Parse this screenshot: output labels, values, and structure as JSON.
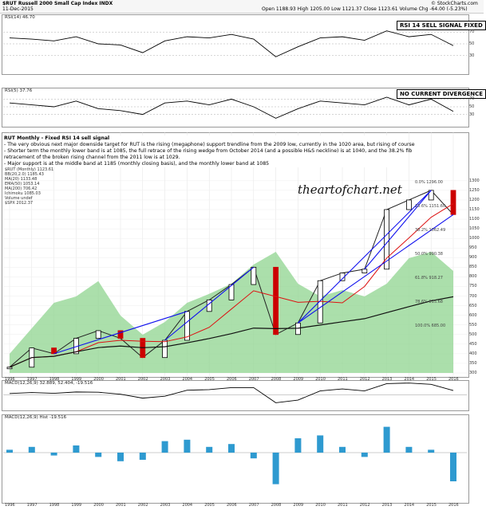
{
  "header": {
    "symbol": "$RUT Russell 2000 Small Cap Index  INDX",
    "date": "11-Dec-2015",
    "quote": "Open 1188.93  High 1205.00  Low 1121.37  Close 1123.61  Volume  Chg -64.00 (-5.23%)",
    "credit": "© StockCharts.com"
  },
  "panels": {
    "rsi14_label": "RSI(14) 46.70",
    "rsi14_box": "RSI 14 SELL SIGNAL FIXED",
    "rsi5_label": "RSI(5) 37.76",
    "rsi5_box": "NO CURRENT DIVERGENCE",
    "main_label": "$RUT (Monthly) 1123.61",
    "macd_label": "MACD(12,26,9) 32.889, 52.404, -19.516",
    "hist_label": "MACD(12,26,9) Hist -19.516"
  },
  "note": {
    "title": "RUT Monthly - Fixed RSI 14 sell signal",
    "lines": [
      "- The very obvious next major downside target for RUT is the rising (megaphone) support trendline from the 2009 low, currently in the 1020 area, but rising of course",
      "- Shorter term the monthly lower band is at 1085, the full retrace of the rising wedge from October 2014 (and a possible H&S neckline) is at 1040, and the 38.2% fib",
      "retracement of the broken rising channel from the 2011 low is at 1029.",
      "- Major support is at the middle band at 1185 (monthly closing basis), and the monthly lower band at 1085"
    ]
  },
  "legend": [
    "BB(20,2.0) 1185.43",
    "MA(20) 1133.48",
    "EMA(50) 1053.14",
    "MA(200) 706.42",
    "Ichimoku 1085.03",
    "Volume undef",
    "$SPX 2012.37"
  ],
  "watermark": "theartofchart.net",
  "y_ticks": [
    "1300",
    "1250",
    "1200",
    "1150",
    "1100",
    "1050",
    "1000",
    "950",
    "900",
    "850",
    "800",
    "750",
    "700",
    "650",
    "600",
    "550",
    "500",
    "450",
    "400",
    "350",
    "300"
  ],
  "fib_labels": [
    "0.0% 1296.00",
    "23.6% 1151.60",
    "38.2% 1062.49",
    "50.0% 990.38",
    "61.8% 918.27",
    "78.6% 815.68",
    "100.0% 685.00"
  ],
  "rsi_ticks": [
    "70",
    "50",
    "30"
  ],
  "colors": {
    "volume_fill": "#8fd48f",
    "candle_up": "#000000",
    "candle_down": "#cc0000",
    "trendline": "#1010ee",
    "red_line": "#dd1111",
    "macd_hist": "#2e9ad0"
  },
  "chart_data": {
    "type": "line",
    "title": "$RUT (Monthly) 1123.61",
    "x": [
      "1996",
      "1997",
      "1998",
      "1999",
      "2000",
      "2001",
      "2002",
      "2003",
      "2004",
      "2005",
      "2006",
      "2007",
      "2008",
      "2009",
      "2010",
      "2011",
      "2012",
      "2013",
      "2014",
      "2015",
      "2016"
    ],
    "ylim": [
      300,
      1320
    ],
    "series": [
      {
        "name": "$RUT",
        "values": [
          330,
          430,
          400,
          480,
          520,
          480,
          380,
          470,
          620,
          680,
          760,
          850,
          500,
          560,
          780,
          820,
          840,
          1150,
          1200,
          1250,
          1124
        ]
      }
    ],
    "rsi14": [
      60,
      58,
      55,
      62,
      50,
      48,
      35,
      55,
      62,
      60,
      66,
      58,
      28,
      45,
      60,
      62,
      56,
      72,
      62,
      66,
      47
    ],
    "rsi5": [
      60,
      55,
      50,
      65,
      45,
      40,
      30,
      60,
      65,
      55,
      70,
      50,
      20,
      45,
      65,
      60,
      55,
      75,
      55,
      70,
      38
    ],
    "macd": [
      10,
      18,
      12,
      22,
      20,
      5,
      -25,
      -10,
      35,
      40,
      55,
      55,
      -60,
      -40,
      30,
      45,
      30,
      85,
      90,
      80,
      33
    ],
    "hist": [
      2,
      4,
      -2,
      5,
      -3,
      -6,
      -5,
      8,
      9,
      4,
      6,
      -4,
      -22,
      10,
      12,
      4,
      -3,
      18,
      4,
      2,
      -20
    ]
  }
}
